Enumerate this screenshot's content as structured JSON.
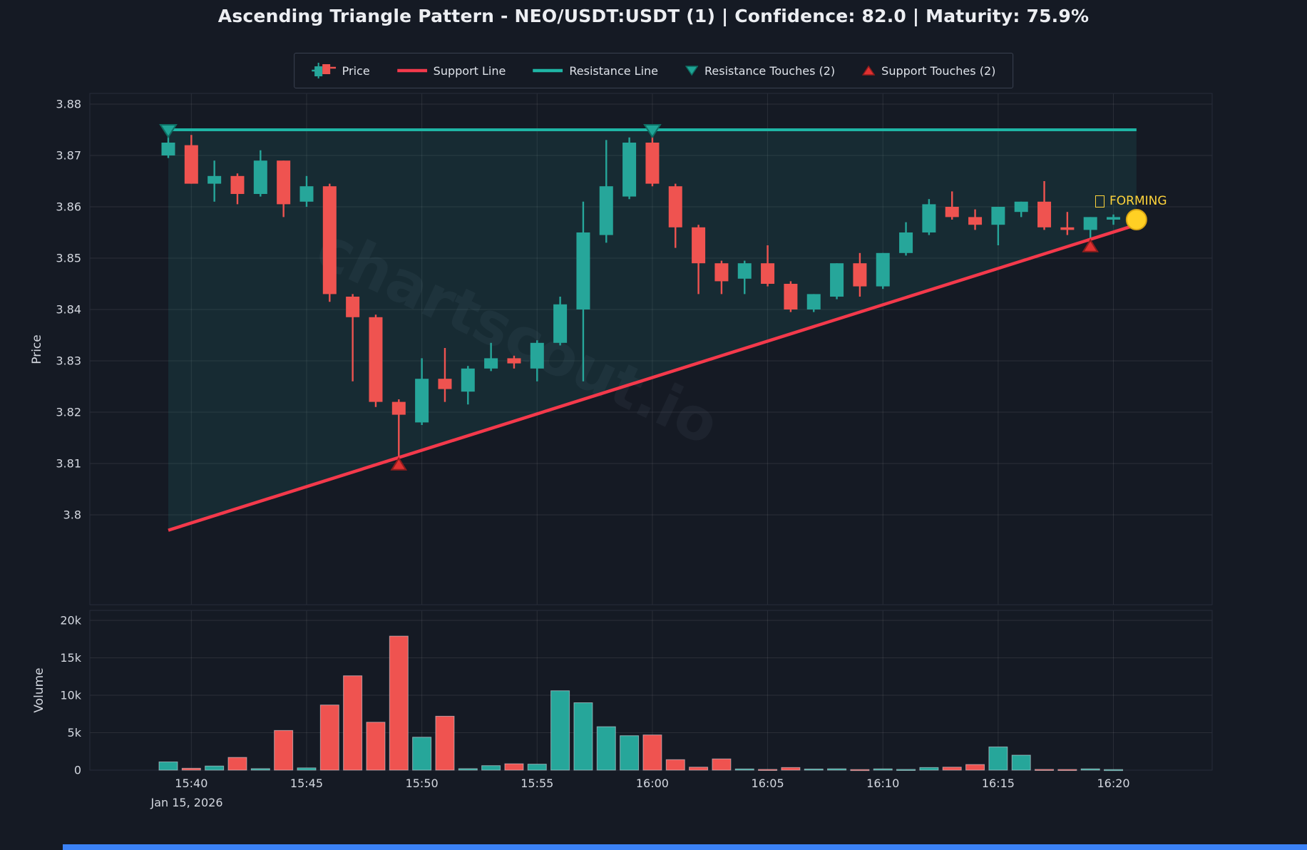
{
  "title": "Ascending Triangle Pattern - NEO/USDT:USDT (1) | Confidence: 82.0 | Maturity: 75.9%",
  "legend": {
    "price_label": "Price",
    "support_label": "Support Line",
    "resistance_label": "Resistance Line",
    "resistance_touches_label": "Resistance Touches (2)",
    "support_touches_label": "Support Touches (2)"
  },
  "axes": {
    "price_title": "Price",
    "volume_title": "Volume",
    "date_label": "Jan 15, 2026"
  },
  "annotations": {
    "forming_label": "FORMING"
  },
  "colors": {
    "background": "#151a24",
    "up": "#26a69a",
    "down": "#ef5350",
    "support_line": "#f4394b",
    "resistance_line": "#1fb5a5",
    "tint": "rgba(38,166,154,0.13)",
    "grid": "rgba(255,255,255,0.09)",
    "spine": "#262c3a",
    "tick_text": "#d4d8e0",
    "dot_fill": "#ffd024",
    "dot_stroke": "#d9a513",
    "support_marker_fill": "#e03131",
    "support_marker_stroke": "#8f1d1d",
    "resistance_marker_fill": "#1fa596",
    "resistance_marker_stroke": "#0e6e63",
    "volume_bar_edge": "rgba(220,224,232,0.55)",
    "forming_text": "#ffd43b",
    "bottom_strip": "#3b82f6"
  },
  "chart_data": {
    "type": "candlestick+volume",
    "symbol": "NEO/USDT:USDT",
    "pattern": {
      "name": "Ascending Triangle Pattern",
      "confidence": 82.0,
      "maturity_pct": 75.9,
      "status": "FORMING",
      "resistance_level": 3.875,
      "resistance_touches": [
        {
          "time": "15:39",
          "price": 3.875
        },
        {
          "time": "16:00",
          "price": 3.875
        }
      ],
      "support_touches": [
        {
          "time": "15:49",
          "price": 3.811
        },
        {
          "time": "16:19",
          "price": 3.8535
        }
      ],
      "support_line": {
        "start_time": "15:39",
        "start_price": 3.797,
        "end_time": "16:21",
        "end_price": 3.8565
      },
      "forming_dot": {
        "time": "16:21",
        "price": 3.8575
      }
    },
    "price_axis": {
      "ticks": [
        3.88,
        3.87,
        3.86,
        3.85,
        3.84,
        3.83,
        3.82,
        3.81,
        3.8
      ],
      "tick_labels": [
        "3.88",
        "3.87",
        "3.86",
        "3.85",
        "3.84",
        "3.83",
        "3.82",
        "3.81",
        "3.8"
      ]
    },
    "volume_axis": {
      "ticks": [
        20000,
        15000,
        10000,
        5000,
        0
      ],
      "tick_labels": [
        "20k",
        "15k",
        "10k",
        "5k",
        "0"
      ]
    },
    "x_axis": {
      "tick_times": [
        "15:40",
        "15:45",
        "15:50",
        "15:55",
        "16:00",
        "16:05",
        "16:10",
        "16:15",
        "16:20"
      ],
      "date": "Jan 15, 2026"
    },
    "columns": [
      "time",
      "open",
      "high",
      "low",
      "close",
      "volume"
    ],
    "candles": [
      [
        "15:39",
        3.87,
        3.8745,
        3.8695,
        3.8725,
        1100
      ],
      [
        "15:40",
        3.872,
        3.874,
        3.8645,
        3.8645,
        250
      ],
      [
        "15:41",
        3.8645,
        3.869,
        3.861,
        3.866,
        550
      ],
      [
        "15:42",
        3.866,
        3.8665,
        3.8605,
        3.8625,
        1700
      ],
      [
        "15:43",
        3.8625,
        3.871,
        3.862,
        3.869,
        200
      ],
      [
        "15:44",
        3.869,
        3.869,
        3.858,
        3.8605,
        5300
      ],
      [
        "15:45",
        3.861,
        3.866,
        3.86,
        3.864,
        300
      ],
      [
        "15:46",
        3.864,
        3.8645,
        3.8415,
        3.843,
        8700
      ],
      [
        "15:47",
        3.8425,
        3.843,
        3.826,
        3.8385,
        12600
      ],
      [
        "15:48",
        3.8385,
        3.839,
        3.821,
        3.822,
        6400
      ],
      [
        "15:49",
        3.822,
        3.8225,
        3.811,
        3.8195,
        17900
      ],
      [
        "15:50",
        3.818,
        3.8305,
        3.8175,
        3.8265,
        4400
      ],
      [
        "15:51",
        3.8265,
        3.8325,
        3.822,
        3.8245,
        7200
      ],
      [
        "15:52",
        3.824,
        3.829,
        3.8215,
        3.8285,
        200
      ],
      [
        "15:53",
        3.8285,
        3.8335,
        3.828,
        3.8305,
        600
      ],
      [
        "15:54",
        3.8305,
        3.831,
        3.8285,
        3.8295,
        850
      ],
      [
        "15:55",
        3.8285,
        3.834,
        3.826,
        3.8335,
        800
      ],
      [
        "15:56",
        3.8335,
        3.8425,
        3.833,
        3.841,
        10600
      ],
      [
        "15:57",
        3.84,
        3.861,
        3.826,
        3.855,
        9000
      ],
      [
        "15:58",
        3.8545,
        3.873,
        3.853,
        3.864,
        5800
      ],
      [
        "15:59",
        3.862,
        3.8735,
        3.8615,
        3.8725,
        4600
      ],
      [
        "16:00",
        3.8725,
        3.875,
        3.864,
        3.8645,
        4700
      ],
      [
        "16:01",
        3.864,
        3.8645,
        3.852,
        3.856,
        1400
      ],
      [
        "16:02",
        3.856,
        3.8565,
        3.843,
        3.849,
        400
      ],
      [
        "16:03",
        3.849,
        3.8495,
        3.843,
        3.8455,
        1500
      ],
      [
        "16:04",
        3.846,
        3.8495,
        3.843,
        3.849,
        160
      ],
      [
        "16:05",
        3.849,
        3.8525,
        3.8445,
        3.845,
        100
      ],
      [
        "16:06",
        3.845,
        3.8455,
        3.8395,
        3.84,
        350
      ],
      [
        "16:07",
        3.84,
        3.843,
        3.8395,
        3.843,
        150
      ],
      [
        "16:08",
        3.8425,
        3.849,
        3.842,
        3.849,
        180
      ],
      [
        "16:09",
        3.849,
        3.851,
        3.8425,
        3.8445,
        80
      ],
      [
        "16:10",
        3.8445,
        3.851,
        3.844,
        3.851,
        170
      ],
      [
        "16:11",
        3.851,
        3.857,
        3.8505,
        3.855,
        100
      ],
      [
        "16:12",
        3.855,
        3.8615,
        3.8545,
        3.8605,
        350
      ],
      [
        "16:13",
        3.86,
        3.863,
        3.8575,
        3.858,
        400
      ],
      [
        "16:14",
        3.858,
        3.8595,
        3.8555,
        3.8565,
        750
      ],
      [
        "16:15",
        3.8565,
        3.86,
        3.8525,
        3.86,
        3100
      ],
      [
        "16:16",
        3.859,
        3.861,
        3.858,
        3.861,
        2000
      ],
      [
        "16:17",
        3.861,
        3.865,
        3.8555,
        3.856,
        100
      ],
      [
        "16:18",
        3.856,
        3.859,
        3.8545,
        3.8555,
        90
      ],
      [
        "16:19",
        3.8555,
        3.858,
        3.853,
        3.858,
        170
      ],
      [
        "16:20",
        3.8575,
        3.8585,
        3.8565,
        3.858,
        80
      ]
    ],
    "layout": {
      "grid": true,
      "legend_position": "top",
      "watermark": "chartscout.io",
      "price_ylim": [
        3.788,
        3.882
      ],
      "volume_ylim": [
        0,
        21000
      ]
    }
  }
}
